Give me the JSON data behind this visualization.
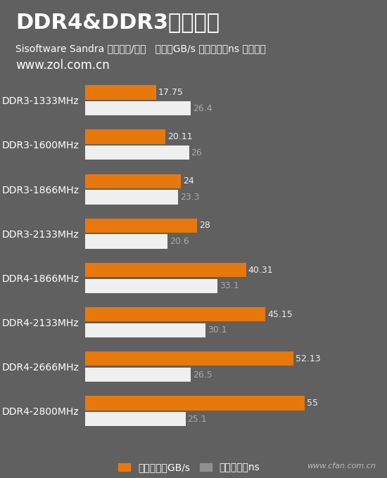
{
  "title": "DDR4&DDR3对比测试",
  "subtitle": "Sisoftware Sandra 内存带宽/延迟   单位：GB/s 越大越好；ns 越小越好",
  "website": "www.zol.com.cn",
  "watermark": "www.cfan.com.cn",
  "categories": [
    "DDR3-1333MHz",
    "DDR3-1600MHz",
    "DDR3-1866MHz",
    "DDR3-2133MHz",
    "DDR4-1866MHz",
    "DDR4-2133MHz",
    "DDR4-2666MHz",
    "DDR4-2800MHz"
  ],
  "bandwidth": [
    17.75,
    20.11,
    24,
    28,
    40.31,
    45.15,
    52.13,
    55
  ],
  "latency": [
    26.4,
    26,
    23.3,
    20.6,
    33.1,
    30.1,
    26.5,
    25.1
  ],
  "bar_color_bandwidth": "#E8780A",
  "bar_color_latency": "#EFEFEF",
  "bg_color": "#606060",
  "text_color": "#FFFFFF",
  "label_color_bandwidth": "#EEEEEE",
  "label_color_latency": "#AAAAAA",
  "title_fontsize": 22,
  "subtitle_fontsize": 10,
  "website_fontsize": 12,
  "legend_label_bandwidth": "内存带宽：GB/s",
  "legend_label_latency": "内存延迟：ns",
  "xlim_max": 62,
  "bar_height": 0.32,
  "bar_gap": 0.04
}
